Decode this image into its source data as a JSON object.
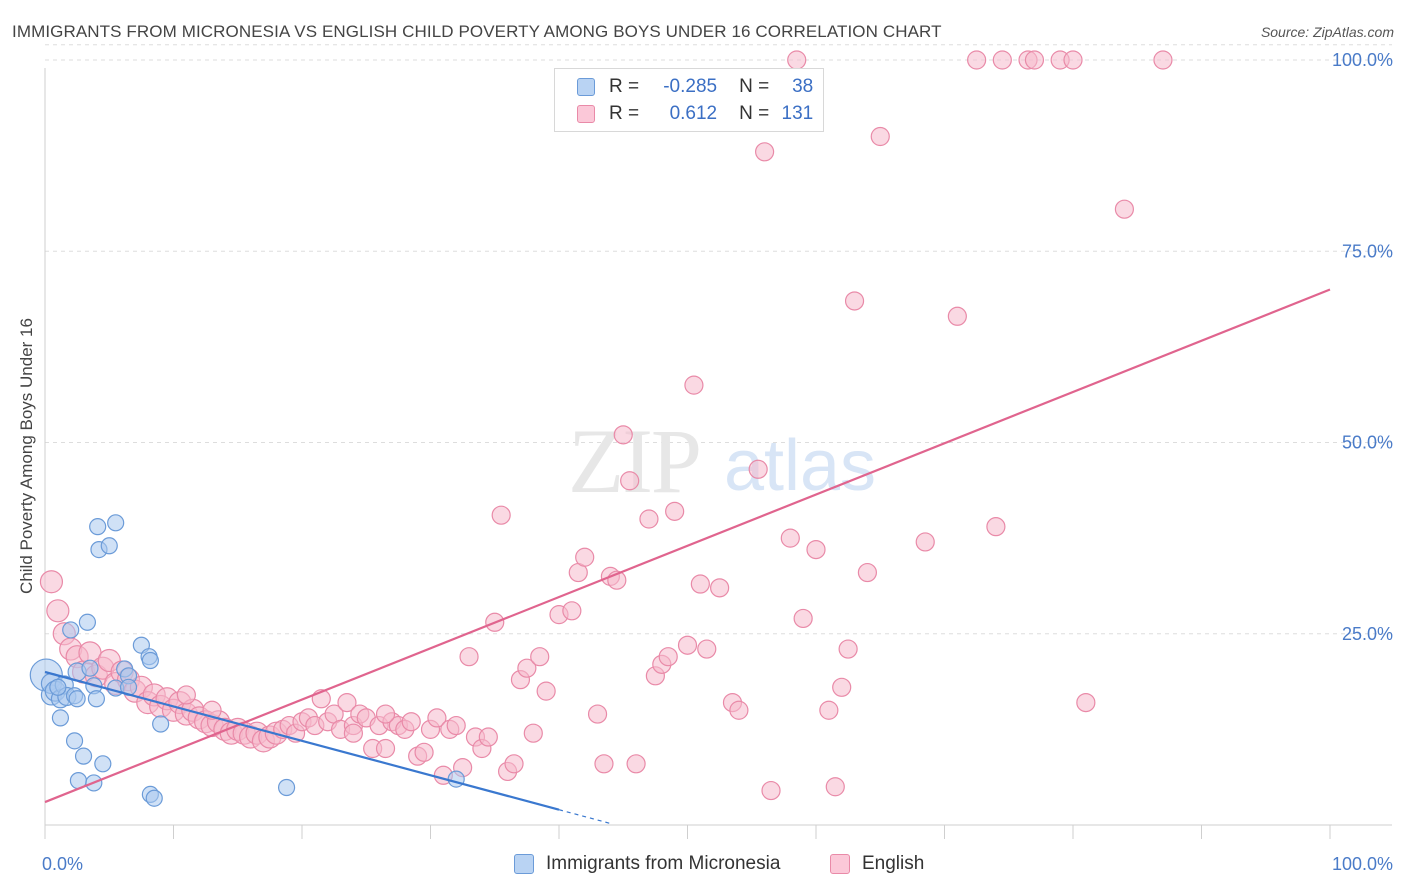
{
  "title": "IMMIGRANTS FROM MICRONESIA VS ENGLISH CHILD POVERTY AMONG BOYS UNDER 16 CORRELATION CHART",
  "source": "Source: ZipAtlas.com",
  "watermark": {
    "zip": "ZIP",
    "atlas": "atlas"
  },
  "legend": {
    "r_label": "R =",
    "n_label": "N =",
    "rows": [
      {
        "r": "-0.285",
        "n": "38"
      },
      {
        "r": "0.612",
        "n": "131"
      }
    ]
  },
  "colors": {
    "blue_fill": "#a9c8ef",
    "blue_stroke": "#6b9bd8",
    "blue_line": "#3a78cf",
    "pink_fill": "#f6b9cc",
    "pink_stroke": "#e98aa8",
    "pink_line": "#e0648e",
    "tick_label": "#4a7bc8",
    "grid": "#dddddd"
  },
  "chart_data": {
    "type": "scatter",
    "title": "IMMIGRANTS FROM MICRONESIA VS ENGLISH CHILD POVERTY AMONG BOYS UNDER 16 CORRELATION CHART",
    "xlabel": "",
    "ylabel": "Child Poverty Among Boys Under 16",
    "xlim": [
      0,
      100
    ],
    "ylim": [
      0,
      102
    ],
    "x_tick_labels": [
      "0.0%",
      "100.0%"
    ],
    "y_ticks": [
      25,
      50,
      75,
      100
    ],
    "y_tick_labels": [
      "25.0%",
      "50.0%",
      "75.0%",
      "100.0%"
    ],
    "grid": true,
    "legend_position": "top-center",
    "series": [
      {
        "name": "Immigrants from Micronesia",
        "r": -0.285,
        "n": 38,
        "trend": {
          "x0": 0,
          "y0": 20.0,
          "x1": 40,
          "y1": 2.0,
          "dash_to_x": 44
        },
        "points": [
          [
            0.1,
            19.6,
            16
          ],
          [
            0.5,
            17.0,
            10
          ],
          [
            0.5,
            18.5,
            10
          ],
          [
            0.8,
            17.5,
            10
          ],
          [
            1.2,
            16.5,
            9
          ],
          [
            1.5,
            18.3,
            9
          ],
          [
            1.7,
            16.8,
            9
          ],
          [
            2.0,
            25.5,
            8
          ],
          [
            2.3,
            16.9,
            8
          ],
          [
            2.5,
            20.0,
            9
          ],
          [
            2.3,
            11.0,
            8
          ],
          [
            1.2,
            14.0,
            8
          ],
          [
            3.5,
            20.5,
            8
          ],
          [
            3.8,
            18.2,
            8
          ],
          [
            4.0,
            16.5,
            8
          ],
          [
            3.0,
            9.0,
            8
          ],
          [
            2.6,
            5.8,
            8
          ],
          [
            3.3,
            26.5,
            8
          ],
          [
            4.2,
            36.0,
            8
          ],
          [
            4.1,
            39.0,
            8
          ],
          [
            5.0,
            36.5,
            8
          ],
          [
            5.5,
            39.5,
            8
          ],
          [
            5.5,
            17.9,
            8
          ],
          [
            6.2,
            20.4,
            8
          ],
          [
            6.5,
            19.5,
            8
          ],
          [
            6.5,
            18.0,
            8
          ],
          [
            7.5,
            23.5,
            8
          ],
          [
            8.1,
            22.0,
            8
          ],
          [
            8.2,
            21.5,
            8
          ],
          [
            9.0,
            13.2,
            8
          ],
          [
            4.5,
            8.0,
            8
          ],
          [
            3.8,
            5.5,
            8
          ],
          [
            8.2,
            4.0,
            8
          ],
          [
            8.5,
            3.5,
            8
          ],
          [
            18.8,
            4.9,
            8
          ],
          [
            32.0,
            6.0,
            8
          ],
          [
            2.5,
            16.5,
            8
          ],
          [
            1.0,
            18.0,
            8
          ]
        ]
      },
      {
        "name": "English",
        "r": 0.612,
        "n": 131,
        "trend": {
          "x0": 0,
          "y0": 3.0,
          "x1": 100,
          "y1": 70.0
        },
        "points": [
          [
            0.5,
            31.8,
            11
          ],
          [
            1.0,
            28.0,
            11
          ],
          [
            1.5,
            25.0,
            11
          ],
          [
            2.0,
            23.0,
            11
          ],
          [
            2.5,
            22.0,
            11
          ],
          [
            3.0,
            20.0,
            11
          ],
          [
            3.5,
            22.5,
            11
          ],
          [
            4.0,
            19.5,
            11
          ],
          [
            4.5,
            20.5,
            11
          ],
          [
            5.0,
            21.5,
            11
          ],
          [
            5.5,
            18.5,
            11
          ],
          [
            6.0,
            20.0,
            11
          ],
          [
            6.5,
            19.0,
            11
          ],
          [
            7.0,
            17.5,
            11
          ],
          [
            7.5,
            18.0,
            11
          ],
          [
            8.0,
            16.0,
            11
          ],
          [
            8.5,
            17.0,
            11
          ],
          [
            9.0,
            15.5,
            11
          ],
          [
            9.5,
            16.5,
            11
          ],
          [
            10.0,
            15.0,
            11
          ],
          [
            10.5,
            16.0,
            11
          ],
          [
            11.0,
            14.5,
            11
          ],
          [
            11.5,
            15.0,
            11
          ],
          [
            12.0,
            14.0,
            11
          ],
          [
            12.5,
            13.5,
            11
          ],
          [
            13.0,
            13.0,
            11
          ],
          [
            13.5,
            13.5,
            11
          ],
          [
            14.0,
            12.5,
            11
          ],
          [
            14.5,
            12.0,
            11
          ],
          [
            15.0,
            12.5,
            11
          ],
          [
            15.5,
            12.0,
            11
          ],
          [
            16.0,
            11.5,
            11
          ],
          [
            16.5,
            12.0,
            11
          ],
          [
            17.0,
            11.0,
            11
          ],
          [
            17.5,
            11.5,
            11
          ],
          [
            18.0,
            12.0,
            11
          ],
          [
            18.5,
            12.5,
            9
          ],
          [
            19.0,
            13.0,
            9
          ],
          [
            19.5,
            12.0,
            9
          ],
          [
            20.0,
            13.5,
            9
          ],
          [
            20.5,
            14.0,
            9
          ],
          [
            21.0,
            13.0,
            9
          ],
          [
            21.5,
            16.5,
            9
          ],
          [
            22.0,
            13.5,
            9
          ],
          [
            22.5,
            14.5,
            9
          ],
          [
            23.0,
            12.5,
            9
          ],
          [
            23.5,
            16.0,
            9
          ],
          [
            24.0,
            13.0,
            9
          ],
          [
            24.5,
            14.5,
            9
          ],
          [
            25.0,
            14.0,
            9
          ],
          [
            25.5,
            10.0,
            9
          ],
          [
            26.0,
            13.0,
            9
          ],
          [
            26.5,
            10.0,
            9
          ],
          [
            27.0,
            13.5,
            9
          ],
          [
            27.5,
            13.0,
            9
          ],
          [
            28.0,
            12.5,
            9
          ],
          [
            28.5,
            13.5,
            9
          ],
          [
            29.0,
            9.0,
            9
          ],
          [
            29.5,
            9.5,
            9
          ],
          [
            30.0,
            12.5,
            9
          ],
          [
            30.5,
            14.0,
            9
          ],
          [
            31.0,
            6.5,
            9
          ],
          [
            31.5,
            12.5,
            9
          ],
          [
            32.0,
            13.0,
            9
          ],
          [
            32.5,
            7.5,
            9
          ],
          [
            33.0,
            22.0,
            9
          ],
          [
            33.5,
            11.5,
            9
          ],
          [
            34.0,
            10.0,
            9
          ],
          [
            34.5,
            11.5,
            9
          ],
          [
            35.0,
            26.5,
            9
          ],
          [
            35.5,
            40.5,
            9
          ],
          [
            36.0,
            7.0,
            9
          ],
          [
            36.5,
            8.0,
            9
          ],
          [
            37.0,
            19.0,
            9
          ],
          [
            37.5,
            20.5,
            9
          ],
          [
            38.0,
            12.0,
            9
          ],
          [
            38.5,
            22.0,
            9
          ],
          [
            39.0,
            17.5,
            9
          ],
          [
            40.0,
            27.5,
            9
          ],
          [
            41.0,
            28.0,
            9
          ],
          [
            41.5,
            33.0,
            9
          ],
          [
            42.0,
            35.0,
            9
          ],
          [
            43.0,
            14.5,
            9
          ],
          [
            43.5,
            8.0,
            9
          ],
          [
            44.0,
            32.5,
            9
          ],
          [
            44.5,
            32.0,
            9
          ],
          [
            45.0,
            51.0,
            9
          ],
          [
            45.5,
            45.0,
            9
          ],
          [
            46.0,
            8.0,
            9
          ],
          [
            47.0,
            40.0,
            9
          ],
          [
            47.5,
            19.5,
            9
          ],
          [
            48.0,
            21.0,
            9
          ],
          [
            48.5,
            22.0,
            9
          ],
          [
            49.0,
            41.0,
            9
          ],
          [
            50.0,
            23.5,
            9
          ],
          [
            50.5,
            57.5,
            9
          ],
          [
            51.0,
            31.5,
            9
          ],
          [
            51.5,
            23.0,
            9
          ],
          [
            52.5,
            31.0,
            9
          ],
          [
            53.5,
            16.0,
            9
          ],
          [
            54.0,
            15.0,
            9
          ],
          [
            55.5,
            46.5,
            9
          ],
          [
            56.0,
            88.0,
            9
          ],
          [
            56.5,
            4.5,
            9
          ],
          [
            58.0,
            37.5,
            9
          ],
          [
            59.0,
            27.0,
            9
          ],
          [
            60.0,
            36.0,
            9
          ],
          [
            61.0,
            15.0,
            9
          ],
          [
            61.5,
            5.0,
            9
          ],
          [
            62.0,
            18.0,
            9
          ],
          [
            62.5,
            23.0,
            9
          ],
          [
            63.0,
            68.5,
            9
          ],
          [
            64.0,
            33.0,
            9
          ],
          [
            65.0,
            90.0,
            9
          ],
          [
            68.5,
            37.0,
            9
          ],
          [
            71.0,
            66.5,
            9
          ],
          [
            72.5,
            100.0,
            9
          ],
          [
            74.0,
            39.0,
            9
          ],
          [
            74.5,
            100.0,
            9
          ],
          [
            76.5,
            100.0,
            9
          ],
          [
            77.0,
            100.0,
            9
          ],
          [
            79.0,
            100.0,
            9
          ],
          [
            80.0,
            100.0,
            9
          ],
          [
            81.0,
            16.0,
            9
          ],
          [
            84.0,
            80.5,
            9
          ],
          [
            87.0,
            100.0,
            9
          ],
          [
            58.5,
            100.0,
            9
          ],
          [
            26.5,
            14.5,
            9
          ],
          [
            24.0,
            12.0,
            9
          ],
          [
            11.0,
            17.0,
            9
          ],
          [
            13.0,
            15.0,
            9
          ]
        ]
      }
    ]
  },
  "bottom_legend": [
    "Immigrants from Micronesia",
    "English"
  ]
}
